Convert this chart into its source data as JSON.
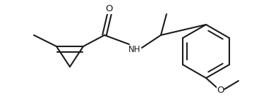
{
  "bg_color": "#ffffff",
  "line_color": "#1a1a1a",
  "line_width": 1.5,
  "font_size": 8.5,
  "figsize": [
    3.6,
    1.38
  ],
  "dpi": 100,
  "xlim": [
    0,
    360
  ],
  "ylim": [
    0,
    138
  ]
}
